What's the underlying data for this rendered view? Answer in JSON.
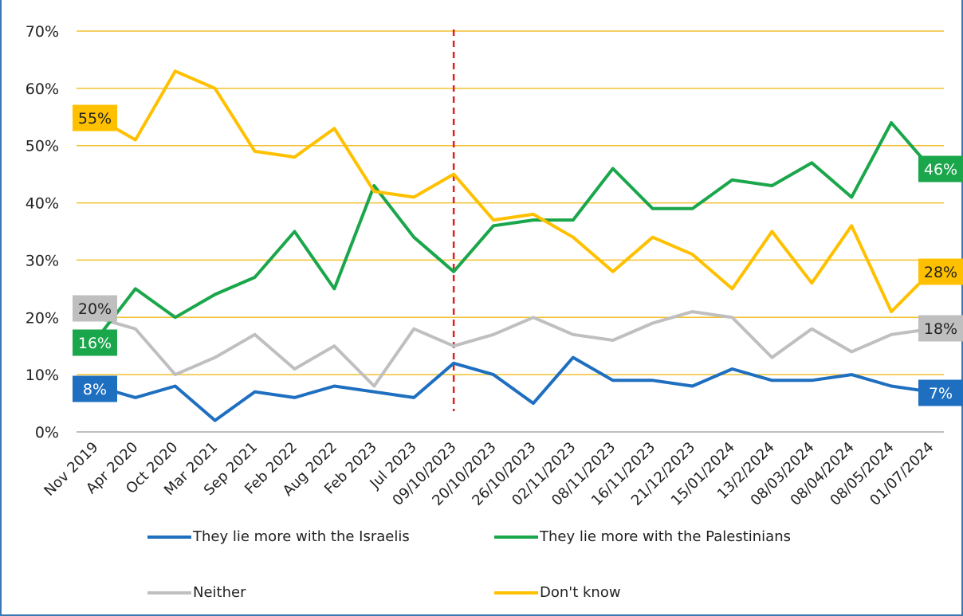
{
  "chart_data": {
    "type": "line",
    "categories": [
      "Nov 2019",
      "Apr 2020",
      "Oct 2020",
      "Mar 2021",
      "Sep 2021",
      "Feb 2022",
      "Aug 2022",
      "Feb 2023",
      "Jul 2023",
      "09/10/2023",
      "20/10/2023",
      "26/10/2023",
      "02/11/2023",
      "08/11/2023",
      "16/11/2023",
      "21/12/2023",
      "15/01/2024",
      "13/2/2024",
      "08/03/2024",
      "08/04/2024",
      "08/05/2024",
      "01/07/2024"
    ],
    "ylim": [
      0,
      70
    ],
    "yticks": [
      "0%",
      "10%",
      "20%",
      "30%",
      "40%",
      "50%",
      "60%",
      "70%"
    ],
    "grid": true,
    "legend_position": "bottom",
    "reference_line": {
      "at_category": "09/10/2023",
      "style": "dashed",
      "color": "#e02020"
    },
    "series": [
      {
        "name": "They lie more with the Israelis",
        "color": "#1f6fc0",
        "values": [
          8,
          6,
          8,
          2,
          7,
          6,
          8,
          7,
          6,
          12,
          10,
          5,
          13,
          9,
          9,
          8,
          11,
          9,
          9,
          10,
          8,
          7
        ],
        "labels": {
          "first": "8%",
          "last": "7%"
        }
      },
      {
        "name": "They lie more with the Palestinians",
        "color": "#1aa64a",
        "values": [
          16,
          25,
          20,
          24,
          27,
          35,
          25,
          43,
          34,
          28,
          36,
          37,
          37,
          46,
          39,
          39,
          44,
          43,
          47,
          41,
          54,
          46
        ],
        "labels": {
          "first": "16%",
          "last": "46%"
        }
      },
      {
        "name": "Neither",
        "color": "#bfbfbf",
        "values": [
          20,
          18,
          10,
          13,
          17,
          11,
          15,
          8,
          18,
          15,
          17,
          20,
          17,
          16,
          19,
          21,
          20,
          13,
          18,
          14,
          17,
          18
        ],
        "labels": {
          "first": "20%",
          "last": "18%"
        }
      },
      {
        "name": "Don't know",
        "color": "#ffc000",
        "values": [
          55,
          51,
          63,
          60,
          49,
          48,
          53,
          42,
          41,
          45,
          37,
          38,
          34,
          28,
          34,
          31,
          25,
          35,
          26,
          36,
          21,
          28
        ],
        "labels": {
          "first": "55%",
          "last": "28%"
        }
      }
    ]
  },
  "colors": {
    "gridline": "#f2c12e",
    "frame": "#3a78b5",
    "axis": "#7f7f7f",
    "label_text_dark": "#222222"
  }
}
